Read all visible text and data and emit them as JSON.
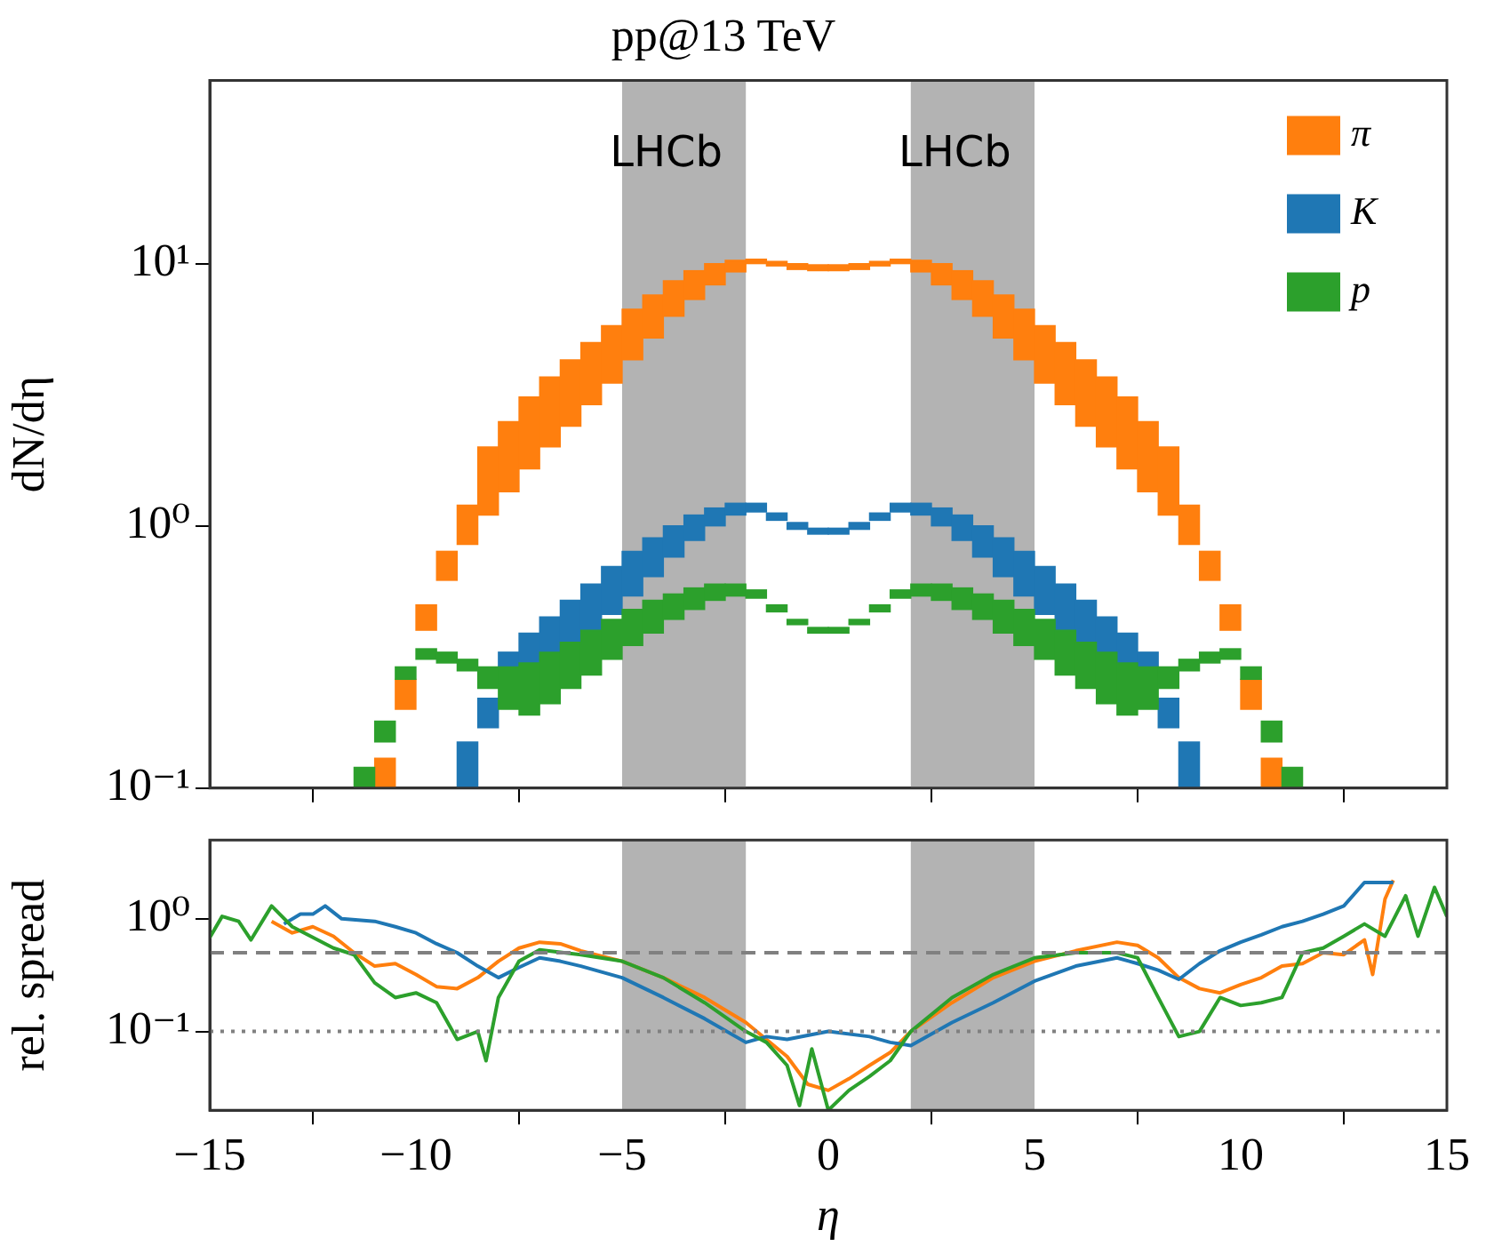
{
  "chart_data": [
    {
      "type": "bar",
      "title": "pp@13 TeV",
      "ylabel": "dN/dη",
      "log": "y",
      "legend": "top right",
      "tick_labels": "y",
      "xlim": [
        -15,
        15
      ],
      "xticks": [
        -15,
        -10,
        -5,
        0,
        5,
        10,
        15
      ],
      "ylim": [
        0.1,
        50
      ],
      "yticks": [
        {
          "value": 0.1,
          "label": "10⁻¹"
        },
        {
          "value": 1,
          "label": "10⁰"
        },
        {
          "value": 10,
          "label": "10¹"
        }
      ],
      "bands": [
        {
          "axis": "x",
          "from": -5,
          "to": -2,
          "label": "LHCb",
          "color": "#b3b3b3"
        },
        {
          "axis": "x",
          "from": 2,
          "to": 5,
          "label": "LHCb",
          "color": "#b3b3b3"
        }
      ],
      "series": [
        {
          "name": "π",
          "color": "#ff7f0e",
          "x": [
            -10.75,
            -10.25,
            -9.75,
            -9.25,
            -8.75,
            -8.25,
            -7.75,
            -7.25,
            -6.75,
            -6.25,
            -5.75,
            -5.25,
            -4.75,
            -4.25,
            -3.75,
            -3.25,
            -2.75,
            -2.25,
            -1.75,
            -1.25,
            -0.75,
            -0.25,
            0.25,
            0.75,
            1.25,
            1.75,
            2.25,
            2.75,
            3.25,
            3.75,
            4.25,
            4.75,
            5.25,
            5.75,
            6.25,
            6.75,
            7.25,
            7.75,
            8.25,
            8.75,
            9.25,
            9.75,
            10.25,
            10.75
          ],
          "base": [
            0.1,
            0.2,
            0.4,
            0.62,
            0.85,
            1.1,
            1.35,
            1.65,
            2,
            2.4,
            2.9,
            3.5,
            4.3,
            5.2,
            6.3,
            7.3,
            8.3,
            9.3,
            10,
            9.8,
            9.5,
            9.4,
            9.4,
            9.5,
            9.8,
            10,
            9.3,
            8.3,
            7.3,
            6.3,
            5.2,
            4.3,
            3.5,
            2.9,
            2.4,
            2,
            1.65,
            1.35,
            1.1,
            0.85,
            0.62,
            0.4,
            0.2,
            0.1
          ],
          "values": [
            0.03,
            0.06,
            0.1,
            0.18,
            0.35,
            0.9,
            1.15,
            1.45,
            1.7,
            1.9,
            2.1,
            2.3,
            2.4,
            2.4,
            2.3,
            2.1,
            1.7,
            1,
            0.4,
            0.4,
            0.5,
            0.5,
            0.5,
            0.5,
            0.4,
            0.4,
            1,
            1.7,
            2.1,
            2.3,
            2.4,
            2.4,
            2.3,
            2.1,
            1.9,
            1.7,
            1.45,
            1.15,
            0.9,
            0.35,
            0.18,
            0.1,
            0.06,
            0.03
          ]
        },
        {
          "name": "K",
          "color": "#1f77b4",
          "x": [
            -8.75,
            -8.25,
            -7.75,
            -7.25,
            -6.75,
            -6.25,
            -5.75,
            -5.25,
            -4.75,
            -4.25,
            -3.75,
            -3.25,
            -2.75,
            -2.25,
            -1.75,
            -1.25,
            -0.75,
            -0.25,
            0.25,
            0.75,
            1.25,
            1.75,
            2.25,
            2.75,
            3.25,
            3.75,
            4.25,
            4.75,
            5.25,
            5.75,
            6.25,
            6.75,
            7.25,
            7.75,
            8.25,
            8.75
          ],
          "base": [
            0.1,
            0.17,
            0.26,
            0.28,
            0.31,
            0.35,
            0.4,
            0.46,
            0.54,
            0.64,
            0.76,
            0.88,
            1,
            1.1,
            1.13,
            1.05,
            0.97,
            0.93,
            0.93,
            0.97,
            1.05,
            1.13,
            1.1,
            1,
            0.88,
            0.76,
            0.64,
            0.54,
            0.46,
            0.4,
            0.35,
            0.31,
            0.28,
            0.26,
            0.17,
            0.1
          ],
          "values": [
            0.05,
            0.05,
            0.07,
            0.11,
            0.14,
            0.17,
            0.2,
            0.24,
            0.26,
            0.26,
            0.24,
            0.22,
            0.17,
            0.12,
            0.09,
            0.07,
            0.06,
            0.05,
            0.05,
            0.06,
            0.07,
            0.09,
            0.12,
            0.17,
            0.22,
            0.24,
            0.26,
            0.26,
            0.24,
            0.2,
            0.17,
            0.14,
            0.11,
            0.07,
            0.05,
            0.05
          ]
        },
        {
          "name": "p",
          "color": "#2ca02c",
          "x": [
            -11.25,
            -10.75,
            -10.25,
            -9.75,
            -9.25,
            -8.75,
            -8.25,
            -7.75,
            -7.25,
            -6.75,
            -6.25,
            -5.75,
            -5.25,
            -4.75,
            -4.25,
            -3.75,
            -3.25,
            -2.75,
            -2.25,
            -1.75,
            -1.25,
            -0.75,
            -0.25,
            0.25,
            0.75,
            1.25,
            1.75,
            2.25,
            2.75,
            3.25,
            3.75,
            4.25,
            4.75,
            5.25,
            5.75,
            6.25,
            6.75,
            7.25,
            7.75,
            8.25,
            8.75,
            9.25,
            9.75,
            10.25,
            10.75,
            11.25
          ],
          "base": [
            0.1,
            0.15,
            0.26,
            0.31,
            0.3,
            0.28,
            0.24,
            0.2,
            0.19,
            0.21,
            0.24,
            0.27,
            0.31,
            0.35,
            0.39,
            0.44,
            0.48,
            0.52,
            0.54,
            0.53,
            0.47,
            0.42,
            0.39,
            0.39,
            0.42,
            0.47,
            0.53,
            0.54,
            0.52,
            0.48,
            0.44,
            0.39,
            0.35,
            0.31,
            0.27,
            0.24,
            0.21,
            0.19,
            0.2,
            0.24,
            0.28,
            0.3,
            0.31,
            0.26,
            0.15,
            0.1
          ],
          "values": [
            0.02,
            0.03,
            0.03,
            0.03,
            0.03,
            0.03,
            0.05,
            0.09,
            0.11,
            0.12,
            0.12,
            0.13,
            0.13,
            0.13,
            0.13,
            0.11,
            0.1,
            0.08,
            0.06,
            0.04,
            0.03,
            0.02,
            0.02,
            0.02,
            0.02,
            0.03,
            0.04,
            0.06,
            0.08,
            0.1,
            0.11,
            0.13,
            0.13,
            0.13,
            0.13,
            0.12,
            0.12,
            0.11,
            0.09,
            0.05,
            0.03,
            0.03,
            0.03,
            0.03,
            0.03,
            0.02
          ]
        }
      ]
    },
    {
      "type": "line",
      "xlabel": "η",
      "ylabel": "rel. spread",
      "log": "y",
      "xlim": [
        -15,
        15
      ],
      "xticks": [
        {
          "value": -15,
          "label": "−15"
        },
        {
          "value": -10,
          "label": "−10"
        },
        {
          "value": -5,
          "label": "−5"
        },
        0,
        5,
        10,
        15
      ],
      "ylim": [
        0.02,
        5
      ],
      "yticks": [
        {
          "value": 0.1,
          "label": "10⁻¹"
        },
        {
          "value": 1,
          "label": "10⁰"
        }
      ],
      "bands": [
        {
          "axis": "x",
          "from": -5,
          "to": -2,
          "color": "#b3b3b3"
        },
        {
          "axis": "x",
          "from": 2,
          "to": 5,
          "color": "#b3b3b3"
        }
      ],
      "ref_lines": [
        {
          "axis": "y",
          "value": 0.5,
          "color": "#808080",
          "line_style": "dashed"
        },
        {
          "axis": "y",
          "value": 0.1,
          "color": "#808080",
          "line_style": "dotted"
        }
      ],
      "series": [
        {
          "color": "#ff7f0e",
          "x": [
            -13.5,
            -13,
            -12.5,
            -12,
            -11.5,
            -11,
            -10.5,
            -10,
            -9.5,
            -9,
            -8.5,
            -8,
            -7.5,
            -7,
            -6.5,
            -6,
            -5,
            -4,
            -3,
            -2,
            -1,
            -0.5,
            0,
            0.5,
            1,
            1.5,
            2,
            3,
            4,
            5,
            6,
            7,
            7.5,
            8,
            8.5,
            9,
            9.5,
            10,
            10.5,
            11,
            11.5,
            12,
            12.5,
            13,
            13.2,
            13.5,
            13.7
          ],
          "values": [
            0.95,
            0.75,
            0.85,
            0.7,
            0.5,
            0.38,
            0.4,
            0.32,
            0.25,
            0.24,
            0.3,
            0.42,
            0.55,
            0.62,
            0.6,
            0.52,
            0.42,
            0.3,
            0.2,
            0.12,
            0.06,
            0.034,
            0.03,
            0.038,
            0.05,
            0.065,
            0.1,
            0.18,
            0.3,
            0.42,
            0.52,
            0.62,
            0.58,
            0.45,
            0.3,
            0.24,
            0.22,
            0.26,
            0.3,
            0.38,
            0.4,
            0.5,
            0.48,
            0.65,
            0.32,
            1.5,
            2.2
          ]
        },
        {
          "color": "#1f77b4",
          "x": [
            -13.2,
            -12.8,
            -12.5,
            -12.2,
            -11.8,
            -11,
            -10.5,
            -10,
            -9.5,
            -9,
            -8.5,
            -8,
            -7.5,
            -7,
            -6.5,
            -6,
            -5,
            -4,
            -3,
            -2,
            -1.5,
            -1,
            0,
            1,
            1.5,
            2,
            3,
            4,
            5,
            6,
            7,
            7.5,
            8,
            8.5,
            9,
            9.5,
            10,
            10.5,
            11,
            11.5,
            12,
            12.5,
            13,
            13.7
          ],
          "values": [
            0.9,
            1.1,
            1.1,
            1.3,
            1,
            0.95,
            0.85,
            0.75,
            0.6,
            0.5,
            0.38,
            0.3,
            0.37,
            0.45,
            0.42,
            0.38,
            0.3,
            0.2,
            0.13,
            0.08,
            0.09,
            0.085,
            0.1,
            0.09,
            0.08,
            0.075,
            0.12,
            0.18,
            0.28,
            0.38,
            0.45,
            0.4,
            0.35,
            0.29,
            0.4,
            0.52,
            0.62,
            0.72,
            0.85,
            0.95,
            1.1,
            1.3,
            2.1,
            2.1
          ]
        },
        {
          "color": "#2ca02c",
          "x": [
            -15,
            -14.7,
            -14.3,
            -14,
            -13.5,
            -13,
            -12,
            -11.5,
            -11,
            -10.5,
            -10,
            -9.5,
            -9,
            -8.5,
            -8.3,
            -8,
            -7.5,
            -7,
            -6,
            -5,
            -4,
            -3,
            -2,
            -1.5,
            -1,
            -0.7,
            -0.4,
            0,
            0.5,
            1,
            1.5,
            2,
            3,
            4,
            5,
            6,
            7,
            7.5,
            8,
            8.5,
            9,
            9.5,
            10,
            10.5,
            11,
            11.5,
            12,
            12.5,
            13,
            13.5,
            14,
            14.3,
            14.7,
            15
          ],
          "values": [
            0.68,
            1.05,
            0.95,
            0.65,
            1.3,
            0.85,
            0.55,
            0.48,
            0.27,
            0.2,
            0.22,
            0.18,
            0.085,
            0.1,
            0.055,
            0.2,
            0.42,
            0.53,
            0.48,
            0.42,
            0.3,
            0.18,
            0.1,
            0.08,
            0.05,
            0.022,
            0.07,
            0.02,
            0.03,
            0.04,
            0.055,
            0.1,
            0.2,
            0.32,
            0.45,
            0.5,
            0.5,
            0.45,
            0.2,
            0.09,
            0.1,
            0.2,
            0.17,
            0.18,
            0.2,
            0.5,
            0.55,
            0.7,
            0.9,
            0.7,
            1.6,
            0.7,
            1.9,
            1.05
          ]
        }
      ]
    }
  ]
}
